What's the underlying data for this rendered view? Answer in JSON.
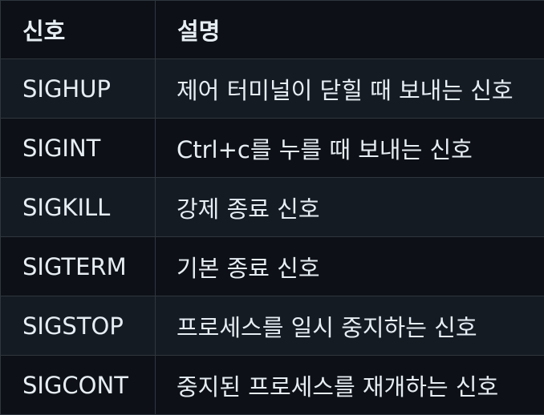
{
  "table": {
    "headers": [
      "신호",
      "설명"
    ],
    "rows": [
      {
        "signal": "SIGHUP",
        "description": "제어 터미널이 닫힐 때 보내는 신호"
      },
      {
        "signal": "SIGINT",
        "description": "Ctrl+c를 누를 때 보내는 신호"
      },
      {
        "signal": "SIGKILL",
        "description": "강제 종료 신호"
      },
      {
        "signal": "SIGTERM",
        "description": "기본 종료 신호"
      },
      {
        "signal": "SIGSTOP",
        "description": "프로세스를 일시 중지하는 신호"
      },
      {
        "signal": "SIGCONT",
        "description": "중지된 프로세스를 재개하는 신호"
      }
    ]
  },
  "colors": {
    "background": "#0d1117",
    "row_stripe": "#151b23",
    "border": "#30363d",
    "text": "#e6edf3"
  }
}
